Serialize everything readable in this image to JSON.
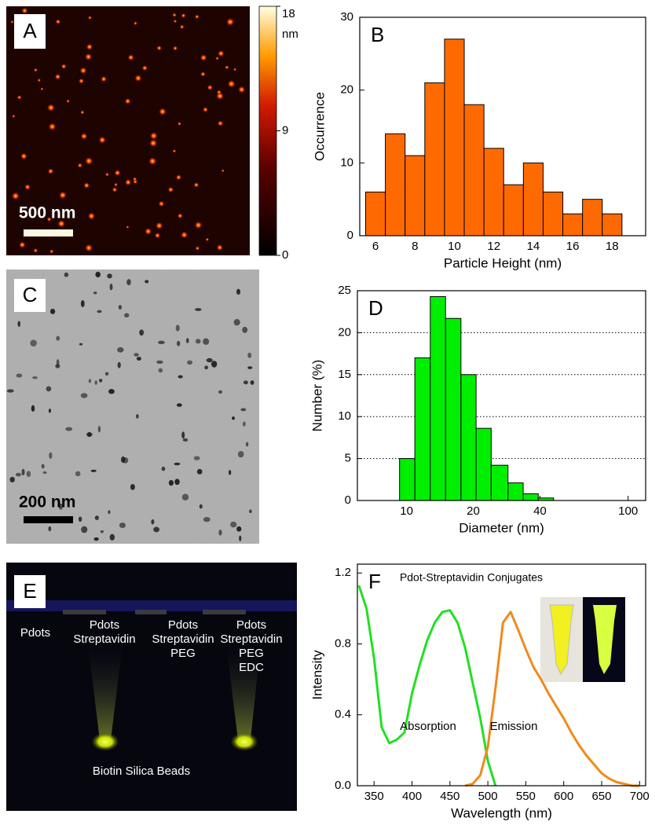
{
  "panels": {
    "A": {
      "label": "A",
      "scale_bar": "500 nm",
      "colorbar": {
        "lim": [
          0,
          18
        ],
        "ticks": [
          0,
          9,
          18
        ],
        "unit": "nm"
      }
    },
    "C": {
      "label": "C",
      "scale_bar": "200 nm"
    },
    "E": {
      "label": "E",
      "tubes": [
        [
          "Pdots"
        ],
        [
          "Pdots",
          "Streptavidin"
        ],
        [
          "Pdots",
          "Streptavidin",
          "PEG"
        ],
        [
          "Pdots",
          "Streptavidin",
          "PEG",
          "EDC"
        ]
      ],
      "caption": "Biotin Silica Beads"
    }
  },
  "chart_data": [
    {
      "type": "histogram",
      "panel_label": "B",
      "xlabel": "Particle Height (nm)",
      "ylabel": "Occurrence",
      "bins": [
        5.5,
        6.5,
        7.5,
        8.5,
        9.5,
        10.5,
        11.5,
        12.5,
        13.5,
        14.5,
        15.5,
        16.5,
        17.5,
        18.5
      ],
      "values": [
        6,
        14,
        11,
        21,
        27,
        18,
        12,
        7,
        10,
        6,
        3,
        5,
        3
      ],
      "color": "#ff6a00",
      "xlim": [
        5.2,
        19.7
      ],
      "xticks": [
        6,
        8,
        10,
        12,
        14,
        16,
        18
      ],
      "ylim": [
        0,
        30
      ],
      "yticks": [
        0,
        10,
        20,
        30
      ],
      "grid": false
    },
    {
      "type": "histogram",
      "panel_label": "D",
      "xlabel": "Diameter (nm)",
      "ylabel": "Number (%)",
      "bins": [
        9.3,
        10.9,
        12.8,
        15.0,
        17.6,
        20.6,
        24.1,
        28.7,
        33.6,
        39.3,
        46.1
      ],
      "values": [
        5.0,
        17.0,
        24.3,
        21.7,
        15.0,
        8.6,
        4.2,
        2.1,
        0.8,
        0.3
      ],
      "color": "#00ee00",
      "xscale": "log",
      "xlim": [
        6,
        120
      ],
      "xticks": [
        10,
        20,
        40,
        100
      ],
      "ylim": [
        0,
        25
      ],
      "yticks": [
        0,
        5,
        10,
        15,
        20,
        25
      ],
      "grid": true
    },
    {
      "type": "line",
      "panel_label": "F",
      "title": "Pdot-Streptavidin Conjugates",
      "xlabel": "Wavelength (nm)",
      "ylabel": "Intensity",
      "annotations": [
        "Absorption",
        "Emission"
      ],
      "x": [
        330,
        340,
        350,
        360,
        370,
        380,
        390,
        400,
        410,
        420,
        430,
        440,
        450,
        460,
        470,
        480,
        490,
        500,
        510,
        520,
        530,
        540,
        550,
        560,
        570,
        580,
        590,
        600,
        610,
        620,
        630,
        640,
        650,
        660,
        670,
        680,
        690,
        700
      ],
      "series": [
        {
          "name": "Absorption",
          "color": "#22e022",
          "values": [
            1.13,
            1.0,
            0.72,
            0.33,
            0.24,
            0.26,
            0.3,
            0.52,
            0.68,
            0.82,
            0.92,
            0.98,
            0.99,
            0.92,
            0.78,
            0.58,
            0.38,
            0.14,
            0.0,
            null,
            null,
            null,
            null,
            null,
            null,
            null,
            null,
            null,
            null,
            null,
            null,
            null,
            null,
            null,
            null,
            null,
            null,
            null
          ]
        },
        {
          "name": "Emission",
          "color": "#f08a1c",
          "values": [
            null,
            null,
            null,
            null,
            null,
            null,
            null,
            null,
            null,
            null,
            null,
            null,
            null,
            null,
            0.0,
            0.01,
            0.06,
            0.22,
            0.55,
            0.92,
            0.98,
            0.88,
            0.77,
            0.67,
            0.6,
            0.52,
            0.45,
            0.38,
            0.3,
            0.23,
            0.17,
            0.12,
            0.07,
            0.04,
            0.02,
            0.01,
            0.0,
            0.0
          ]
        }
      ],
      "xlim": [
        328,
        708
      ],
      "xticks": [
        350,
        400,
        450,
        500,
        550,
        600,
        650,
        700
      ],
      "ylim": [
        0,
        1.25
      ],
      "yticks": [
        {
          "value": 0,
          "label": "0.0"
        },
        0.4,
        0.8,
        1.2
      ],
      "grid": false
    }
  ]
}
